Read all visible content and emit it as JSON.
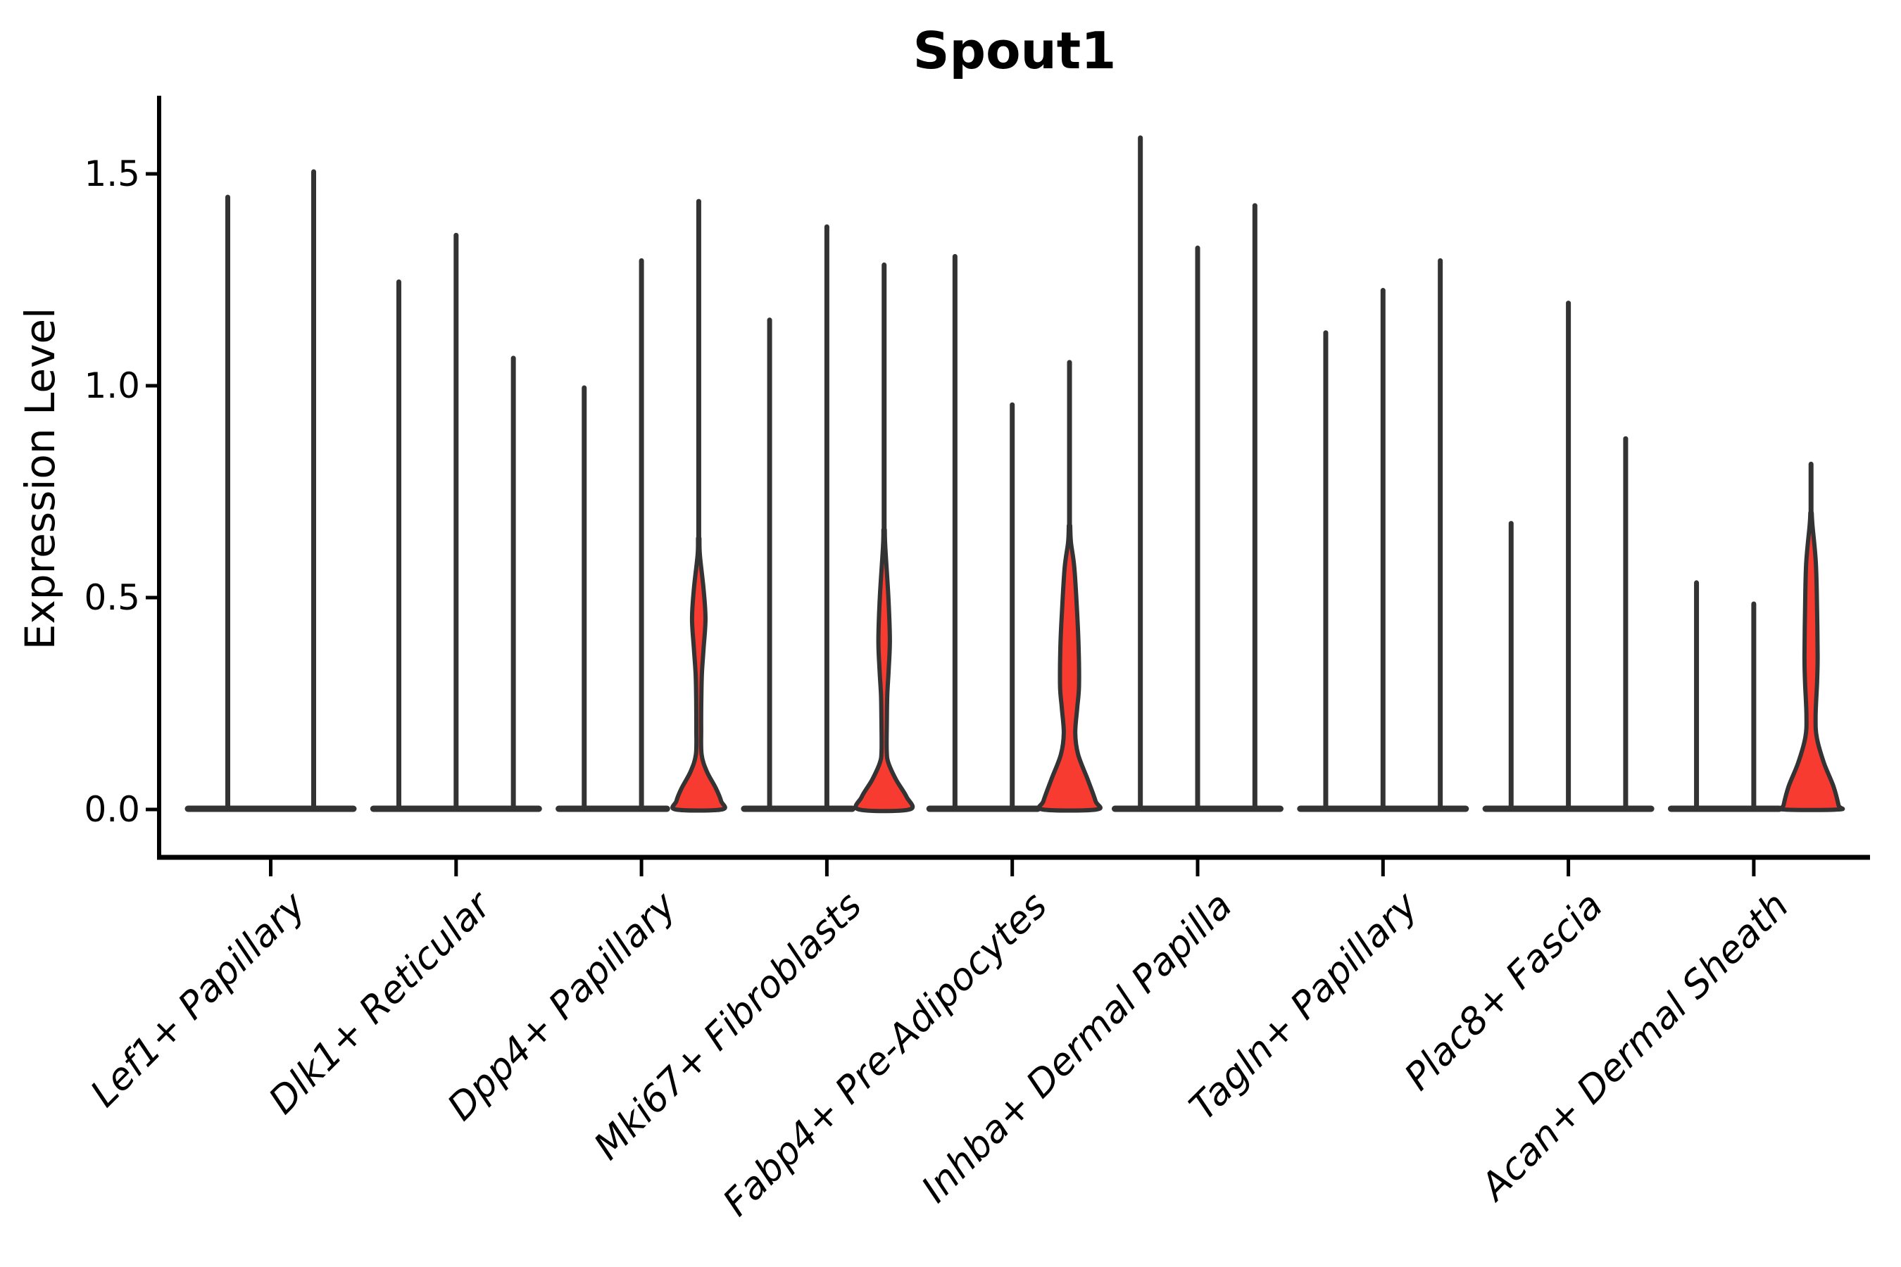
{
  "title": "Spout1",
  "axis": {
    "ylabel": "Expression Level",
    "ytick_labels": [
      "0.0",
      "0.5",
      "1.0",
      "1.5"
    ],
    "ytick_values": [
      0.0,
      0.5,
      1.0,
      1.5
    ]
  },
  "colors": {
    "violin_fill": "#f83b30",
    "violin_stroke": "#333333",
    "axis_color": "#000000"
  },
  "chart_data": {
    "type": "violin",
    "title": "Spout1",
    "xlabel": "",
    "ylabel": "Expression Level",
    "ylim": [
      -0.12,
      1.68
    ],
    "grid": false,
    "legend": "none",
    "categories": [
      "Lef1+ Papillary",
      "Dlk1+ Reticular",
      "Dpp4+ Papillary",
      "Mki67+ Fibroblasts",
      "Fabp4+ Pre-Adipocytes",
      "Inhba+ Dermal Papilla",
      "Tagln+ Papillary",
      "Plac8+ Fascia",
      "Acan+ Dermal Sheath"
    ],
    "series": [
      {
        "category": "Lef1+ Papillary",
        "violins": [
          {
            "max_expression": 1.45,
            "highlighted": false
          },
          {
            "max_expression": 1.51,
            "highlighted": false
          }
        ]
      },
      {
        "category": "Dlk1+ Reticular",
        "violins": [
          {
            "max_expression": 1.25,
            "highlighted": false
          },
          {
            "max_expression": 1.36,
            "highlighted": false
          },
          {
            "max_expression": 1.07,
            "highlighted": false
          }
        ]
      },
      {
        "category": "Dpp4+ Papillary",
        "violins": [
          {
            "max_expression": 1.0,
            "highlighted": false
          },
          {
            "max_expression": 1.3,
            "highlighted": false
          },
          {
            "max_expression": 1.44,
            "highlighted": true,
            "profile": [
              [
                0.64,
                0.01
              ],
              [
                0.6,
                0.04
              ],
              [
                0.52,
                0.17
              ],
              [
                0.45,
                0.235
              ],
              [
                0.38,
                0.17
              ],
              [
                0.32,
                0.11
              ],
              [
                0.26,
                0.09
              ],
              [
                0.19,
                0.085
              ],
              [
                0.13,
                0.1
              ],
              [
                0.09,
                0.28
              ],
              [
                0.05,
                0.6
              ],
              [
                0.02,
                0.78
              ],
              [
                0.0,
                0.8
              ]
            ]
          }
        ]
      },
      {
        "category": "Mki67+ Fibroblasts",
        "violins": [
          {
            "max_expression": 1.16,
            "highlighted": false
          },
          {
            "max_expression": 1.38,
            "highlighted": false
          },
          {
            "max_expression": 1.29,
            "highlighted": true,
            "profile": [
              [
                0.66,
                0.01
              ],
              [
                0.62,
                0.04
              ],
              [
                0.5,
                0.15
              ],
              [
                0.4,
                0.2
              ],
              [
                0.33,
                0.16
              ],
              [
                0.27,
                0.11
              ],
              [
                0.21,
                0.095
              ],
              [
                0.14,
                0.09
              ],
              [
                0.11,
                0.15
              ],
              [
                0.07,
                0.42
              ],
              [
                0.03,
                0.78
              ],
              [
                0.0,
                0.88
              ]
            ]
          }
        ]
      },
      {
        "category": "Fabp4+ Pre-Adipocytes",
        "violins": [
          {
            "max_expression": 1.31,
            "highlighted": false
          },
          {
            "max_expression": 0.96,
            "highlighted": false
          },
          {
            "max_expression": 1.06,
            "highlighted": true,
            "profile": [
              [
                0.67,
                0.01
              ],
              [
                0.63,
                0.05
              ],
              [
                0.57,
                0.17
              ],
              [
                0.46,
                0.27
              ],
              [
                0.38,
                0.32
              ],
              [
                0.29,
                0.33
              ],
              [
                0.24,
                0.27
              ],
              [
                0.18,
                0.2
              ],
              [
                0.13,
                0.3
              ],
              [
                0.07,
                0.64
              ],
              [
                0.02,
                0.91
              ],
              [
                0.0,
                0.94
              ]
            ]
          }
        ]
      },
      {
        "category": "Inhba+ Dermal Papilla",
        "violins": [
          {
            "max_expression": 1.59,
            "highlighted": false
          },
          {
            "max_expression": 1.33,
            "highlighted": false
          },
          {
            "max_expression": 1.43,
            "highlighted": false
          }
        ]
      },
      {
        "category": "Tagln+ Papillary",
        "violins": [
          {
            "max_expression": 1.13,
            "highlighted": false
          },
          {
            "max_expression": 1.23,
            "highlighted": false
          },
          {
            "max_expression": 1.3,
            "highlighted": false
          }
        ]
      },
      {
        "category": "Plac8+ Fascia",
        "violins": [
          {
            "max_expression": 0.68,
            "highlighted": false
          },
          {
            "max_expression": 1.2,
            "highlighted": false
          },
          {
            "max_expression": 0.88,
            "highlighted": false
          }
        ]
      },
      {
        "category": "Acan+ Dermal Sheath",
        "violins": [
          {
            "max_expression": 0.54,
            "highlighted": false
          },
          {
            "max_expression": 0.49,
            "highlighted": false
          },
          {
            "max_expression": 0.82,
            "highlighted": true,
            "profile": [
              [
                0.7,
                0.01
              ],
              [
                0.67,
                0.05
              ],
              [
                0.58,
                0.17
              ],
              [
                0.47,
                0.21
              ],
              [
                0.36,
                0.23
              ],
              [
                0.3,
                0.21
              ],
              [
                0.22,
                0.16
              ],
              [
                0.17,
                0.2
              ],
              [
                0.11,
                0.45
              ],
              [
                0.055,
                0.78
              ],
              [
                0.01,
                0.96
              ],
              [
                0.0,
                0.96
              ]
            ]
          }
        ]
      }
    ]
  }
}
